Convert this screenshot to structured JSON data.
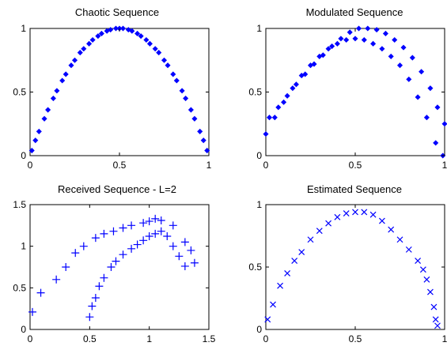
{
  "figure": {
    "charts": [
      {
        "type": "scatter",
        "title": "Chaotic Sequence",
        "marker": "dot",
        "xlim": [
          0,
          1
        ],
        "ylim": [
          0,
          1
        ],
        "xticks": [
          0,
          0.5,
          1
        ],
        "yticks": [
          0,
          0.5,
          1
        ],
        "xtick_labels": [
          "0",
          "0.5",
          "1"
        ],
        "ytick_labels": [
          "0",
          "0.5",
          "1"
        ],
        "color": "#0000ff"
      },
      {
        "type": "scatter",
        "title": "Modulated Sequence",
        "marker": "dot",
        "xlim": [
          0,
          1
        ],
        "ylim": [
          0,
          1
        ],
        "xticks": [
          0,
          0.5,
          1
        ],
        "yticks": [
          0,
          0.5,
          1
        ],
        "xtick_labels": [
          "0",
          "0.5",
          "1"
        ],
        "ytick_labels": [
          "0",
          "0.5",
          "1"
        ],
        "color": "#0000ff"
      },
      {
        "type": "scatter",
        "title": "Received Sequence - L=2",
        "marker": "plus",
        "xlim": [
          0,
          1.5
        ],
        "ylim": [
          0,
          1.5
        ],
        "xticks": [
          0,
          0.5,
          1,
          1.5
        ],
        "yticks": [
          0,
          0.5,
          1,
          1.5
        ],
        "xtick_labels": [
          "0",
          "0.5",
          "1",
          "1.5"
        ],
        "ytick_labels": [
          "0",
          "0.5",
          "1",
          "1.5"
        ],
        "color": "#0000ff"
      },
      {
        "type": "scatter",
        "title": "Estimated Sequence",
        "marker": "cross",
        "xlim": [
          0,
          1
        ],
        "ylim": [
          0,
          1
        ],
        "xticks": [
          0,
          0.5,
          1
        ],
        "yticks": [
          0,
          0.5,
          1
        ],
        "xtick_labels": [
          "0",
          "0.5",
          "1"
        ],
        "ytick_labels": [
          "0",
          "0.5",
          "1"
        ],
        "color": "#0000ff"
      }
    ]
  },
  "chart_data": [
    {
      "type": "scatter",
      "title": "Chaotic Sequence",
      "xlim": [
        0,
        1
      ],
      "ylim": [
        0,
        1
      ],
      "series": [
        {
          "x": [
            0.01,
            0.03,
            0.05,
            0.08,
            0.1,
            0.13,
            0.15,
            0.18,
            0.2,
            0.23,
            0.25,
            0.28,
            0.3,
            0.33,
            0.35,
            0.38,
            0.4,
            0.43,
            0.45,
            0.48,
            0.5,
            0.52,
            0.55,
            0.57,
            0.6,
            0.62,
            0.65,
            0.67,
            0.7,
            0.72,
            0.75,
            0.77,
            0.8,
            0.82,
            0.85,
            0.87,
            0.9,
            0.92,
            0.95,
            0.97,
            0.99
          ],
          "y": [
            0.04,
            0.12,
            0.19,
            0.29,
            0.36,
            0.45,
            0.51,
            0.59,
            0.64,
            0.71,
            0.75,
            0.81,
            0.84,
            0.88,
            0.91,
            0.94,
            0.96,
            0.98,
            0.99,
            1.0,
            1.0,
            1.0,
            0.99,
            0.98,
            0.96,
            0.94,
            0.91,
            0.88,
            0.84,
            0.81,
            0.75,
            0.71,
            0.64,
            0.59,
            0.51,
            0.45,
            0.36,
            0.29,
            0.19,
            0.12,
            0.04
          ]
        }
      ]
    },
    {
      "type": "scatter",
      "title": "Modulated Sequence",
      "xlim": [
        0,
        1
      ],
      "ylim": [
        0,
        1
      ],
      "series": [
        {
          "x": [
            0.0,
            0.05,
            0.1,
            0.15,
            0.2,
            0.25,
            0.3,
            0.35,
            0.4,
            0.45,
            0.5,
            0.55,
            0.6,
            0.65,
            0.7,
            0.75,
            0.8,
            0.85,
            0.9,
            0.95,
            0.99,
            0.02,
            0.07,
            0.12,
            0.17,
            0.22,
            0.27,
            0.32,
            0.37,
            0.42,
            0.47,
            0.52,
            0.57,
            0.62,
            0.67,
            0.72,
            0.77,
            0.82,
            0.87,
            0.92,
            0.96,
            1.0
          ],
          "y": [
            0.17,
            0.3,
            0.42,
            0.53,
            0.63,
            0.71,
            0.78,
            0.84,
            0.88,
            0.91,
            0.92,
            0.91,
            0.88,
            0.84,
            0.78,
            0.71,
            0.6,
            0.46,
            0.3,
            0.1,
            0.0,
            0.3,
            0.38,
            0.47,
            0.56,
            0.64,
            0.72,
            0.79,
            0.86,
            0.92,
            0.97,
            1.0,
            1.0,
            0.99,
            0.96,
            0.91,
            0.85,
            0.77,
            0.66,
            0.53,
            0.38,
            0.25
          ]
        }
      ]
    },
    {
      "type": "scatter",
      "title": "Received Sequence - L=2",
      "xlim": [
        0,
        1.5
      ],
      "ylim": [
        0,
        1.5
      ],
      "series": [
        {
          "x": [
            0.02,
            0.09,
            0.22,
            0.3,
            0.38,
            0.45,
            0.55,
            0.62,
            0.7,
            0.78,
            0.85,
            0.95,
            1.0,
            1.05,
            1.1,
            1.2,
            1.3,
            1.35,
            1.38,
            0.5,
            0.52,
            0.55,
            0.58,
            0.62,
            0.68,
            0.72,
            0.78,
            0.85,
            0.9,
            0.95,
            1.0,
            1.05,
            1.1,
            1.15,
            1.2,
            1.25,
            1.3
          ],
          "y": [
            0.21,
            0.44,
            0.6,
            0.75,
            0.92,
            1.0,
            1.1,
            1.15,
            1.18,
            1.22,
            1.25,
            1.28,
            1.3,
            1.33,
            1.31,
            1.25,
            1.05,
            0.95,
            0.8,
            0.15,
            0.28,
            0.38,
            0.52,
            0.62,
            0.75,
            0.82,
            0.9,
            0.97,
            1.02,
            1.07,
            1.12,
            1.15,
            1.18,
            1.12,
            1.0,
            0.88,
            0.76
          ]
        }
      ]
    },
    {
      "type": "scatter",
      "title": "Estimated Sequence",
      "xlim": [
        0,
        1
      ],
      "ylim": [
        0,
        1
      ],
      "series": [
        {
          "x": [
            0.01,
            0.04,
            0.08,
            0.12,
            0.16,
            0.2,
            0.25,
            0.3,
            0.35,
            0.4,
            0.45,
            0.5,
            0.55,
            0.6,
            0.65,
            0.7,
            0.75,
            0.8,
            0.85,
            0.88,
            0.9,
            0.92,
            0.94,
            0.95,
            0.96
          ],
          "y": [
            0.08,
            0.2,
            0.35,
            0.45,
            0.55,
            0.62,
            0.72,
            0.79,
            0.85,
            0.9,
            0.93,
            0.94,
            0.94,
            0.92,
            0.87,
            0.8,
            0.72,
            0.64,
            0.55,
            0.48,
            0.4,
            0.3,
            0.18,
            0.08,
            0.03
          ]
        }
      ]
    }
  ]
}
